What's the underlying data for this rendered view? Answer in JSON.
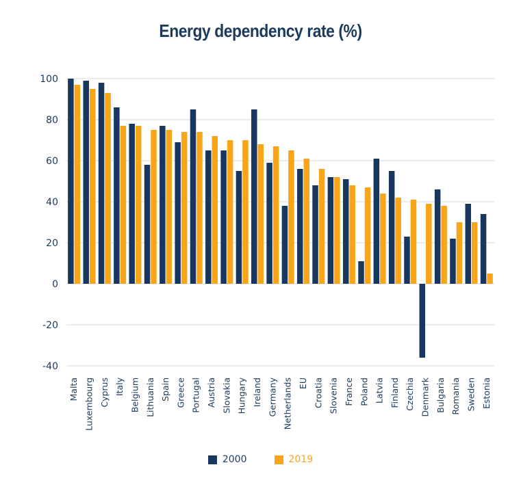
{
  "chart_data": {
    "type": "bar",
    "title": "Energy dependency rate (%)",
    "xlabel": "",
    "ylabel": "",
    "ylim": [
      -40,
      100
    ],
    "yticks": [
      100,
      80,
      60,
      40,
      20,
      0,
      -20,
      -40
    ],
    "grid": true,
    "legend_position": "bottom-center",
    "categories": [
      "Malta",
      "Luxembourg",
      "Cyprus",
      "Italy",
      "Belgium",
      "Lithuania",
      "Spain",
      "Greece",
      "Portugal",
      "Austria",
      "Slovakia",
      "Hungary",
      "Ireland",
      "Germany",
      "Netherlands",
      "EU",
      "Croatia",
      "Slovenia",
      "France",
      "Poland",
      "Latvia",
      "Finland",
      "Czechia",
      "Denmark",
      "Bulgaria",
      "Romania",
      "Sweden",
      "Estonia"
    ],
    "series": [
      {
        "name": "2000",
        "color": "#17375e",
        "values": [
          100,
          99,
          98,
          86,
          78,
          58,
          77,
          69,
          85,
          65,
          65,
          55,
          85,
          59,
          38,
          56,
          48,
          52,
          51,
          11,
          61,
          55,
          23,
          -36,
          46,
          22,
          39,
          34
        ]
      },
      {
        "name": "2019",
        "color": "#f9a51a",
        "values": [
          97,
          95,
          93,
          77,
          77,
          75,
          75,
          74,
          74,
          72,
          70,
          70,
          68,
          67,
          65,
          61,
          56,
          52,
          48,
          47,
          44,
          42,
          41,
          39,
          38,
          30,
          30,
          5
        ]
      }
    ]
  },
  "colors": {
    "title": "#1b3a5c",
    "axis_text": "#1b3a5c",
    "grid": "#d9d9d9"
  }
}
